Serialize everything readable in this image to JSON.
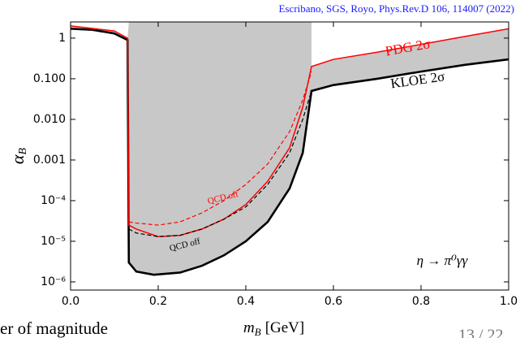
{
  "chart_data": {
    "type": "line",
    "citation": "Escribano, SGS, Royo, Phys.Rev.D 106, 114007 (2022)",
    "xlabel": {
      "text": "m",
      "sub": "B",
      "unit": "[GeV]"
    },
    "ylabel": {
      "text": "α",
      "sub": "B"
    },
    "process": "η → π⁰γγ",
    "log_y": true,
    "xlim": [
      0,
      1
    ],
    "ylim": [
      6.3e-07,
      2.5
    ],
    "xticks": [
      {
        "value": 0,
        "label": "0.0"
      },
      0.2,
      0.4,
      0.6,
      0.8,
      {
        "value": 1,
        "label": "1.0"
      }
    ],
    "yticks": [
      1,
      {
        "value": 0.1,
        "label": "0.100"
      },
      {
        "value": 0.01,
        "label": "0.010"
      },
      {
        "value": 0.001,
        "label": "0.001"
      },
      {
        "value": 0.0001,
        "label": "10⁻⁴"
      },
      {
        "value": 1e-05,
        "label": "10⁻⁵"
      },
      {
        "value": 1e-06,
        "label": "10⁻⁶"
      }
    ],
    "shaded_region": {
      "color": "#c8c8c8",
      "x": [
        0,
        0.05,
        0.1,
        0.13,
        0.133,
        0.15,
        0.19,
        0.25,
        0.3,
        0.35,
        0.4,
        0.45,
        0.5,
        0.53,
        0.55,
        0.6,
        0.7,
        0.8,
        0.9,
        1.0,
        1.0,
        0.9,
        0.8,
        0.7,
        0.6,
        0.55,
        0.55,
        0.133,
        0.13,
        0.1,
        0
      ],
      "y": [
        1.7,
        1.6,
        1.3,
        0.9,
        3e-06,
        1.8e-06,
        1.5e-06,
        1.7e-06,
        2.5e-06,
        4.5e-06,
        1e-05,
        3e-05,
        0.0002,
        0.0015,
        0.05,
        0.07,
        0.1,
        0.15,
        0.22,
        0.3,
        1.7,
        1.1,
        0.7,
        0.45,
        0.3,
        0.2,
        2.5,
        2.5,
        1.0,
        1.5,
        2.0
      ]
    },
    "series": [
      {
        "name": "KLOE 2σ",
        "color": "#000000",
        "dashed": false,
        "x": [
          0,
          0.05,
          0.1,
          0.13,
          0.133,
          0.15,
          0.19,
          0.25,
          0.3,
          0.35,
          0.4,
          0.45,
          0.5,
          0.53,
          0.55,
          0.6,
          0.7,
          0.8,
          0.9,
          1.0
        ],
        "values": [
          1.7,
          1.6,
          1.3,
          0.9,
          3e-06,
          1.8e-06,
          1.5e-06,
          1.7e-06,
          2.5e-06,
          4.5e-06,
          1e-05,
          3e-05,
          0.0002,
          0.0015,
          0.05,
          0.07,
          0.1,
          0.15,
          0.22,
          0.3
        ]
      },
      {
        "name": "PDG 2σ",
        "color": "#ff0000",
        "dashed": false,
        "x": [
          0,
          0.1,
          0.13,
          0.133,
          0.15,
          0.2,
          0.25,
          0.3,
          0.35,
          0.4,
          0.45,
          0.5,
          0.53,
          0.55,
          0.6,
          0.7,
          0.8,
          0.9,
          1.0
        ],
        "values": [
          2.0,
          1.5,
          1.0,
          2.5e-05,
          2e-05,
          1.3e-05,
          1.4e-05,
          2e-05,
          3.5e-05,
          8e-05,
          0.0003,
          0.002,
          0.02,
          0.2,
          0.3,
          0.45,
          0.7,
          1.1,
          1.7
        ]
      },
      {
        "name": "QCD off",
        "color": "#ff0000",
        "dashed": true,
        "x": [
          0.133,
          0.15,
          0.2,
          0.25,
          0.3,
          0.35,
          0.4,
          0.45,
          0.5,
          0.53,
          0.55
        ],
        "values": [
          3e-05,
          2.8e-05,
          2.5e-05,
          3e-05,
          5e-05,
          0.0001,
          0.00025,
          0.0008,
          0.005,
          0.03,
          0.15
        ]
      },
      {
        "name": "QCD off",
        "color": "#000000",
        "dashed": true,
        "x": [
          0.133,
          0.15,
          0.2,
          0.25,
          0.3,
          0.35,
          0.4,
          0.45,
          0.5,
          0.53,
          0.55
        ],
        "values": [
          2e-05,
          1.6e-05,
          1.3e-05,
          1.4e-05,
          2e-05,
          3.5e-05,
          7e-05,
          0.00025,
          0.0015,
          0.01,
          0.05
        ]
      }
    ]
  },
  "slide": {
    "text_fragment": "er of magnitude",
    "page": "13 / 22"
  }
}
